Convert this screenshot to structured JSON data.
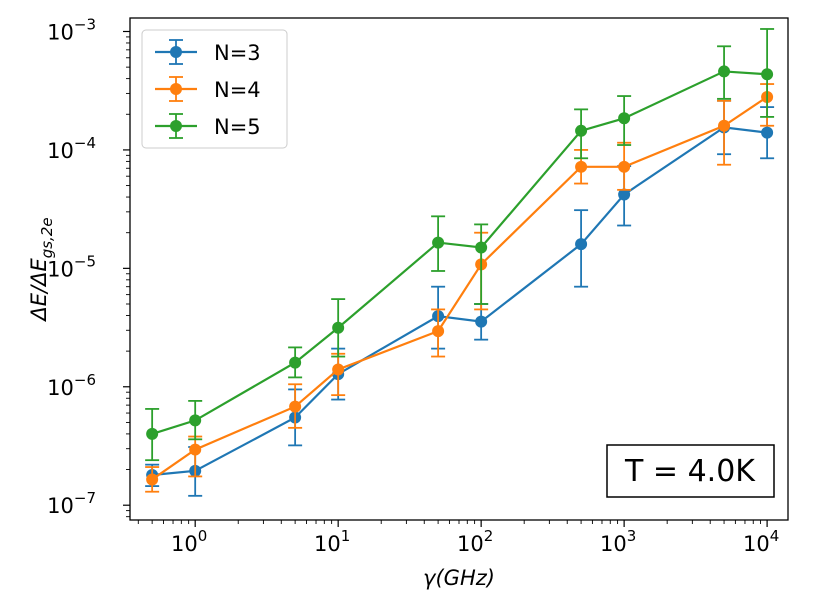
{
  "chart_data": {
    "type": "line",
    "title": "",
    "xlabel": "γ(GHz)",
    "ylabel": "ΔE/ΔE_gs,2e",
    "xscale": "log",
    "yscale": "log",
    "xlim": [
      0.35,
      14000
    ],
    "ylim": [
      7.5e-08,
      0.0013
    ],
    "grid": false,
    "legend_position": "top-left",
    "x_ticks": [
      {
        "value": 1,
        "mantissa": "10",
        "exp": "0"
      },
      {
        "value": 10,
        "mantissa": "10",
        "exp": "1"
      },
      {
        "value": 100,
        "mantissa": "10",
        "exp": "2"
      },
      {
        "value": 1000,
        "mantissa": "10",
        "exp": "3"
      },
      {
        "value": 10000,
        "mantissa": "10",
        "exp": "4"
      }
    ],
    "y_ticks": [
      {
        "value": 1e-07,
        "mantissa": "10",
        "exp": "−7"
      },
      {
        "value": 1e-06,
        "mantissa": "10",
        "exp": "−6"
      },
      {
        "value": 1e-05,
        "mantissa": "10",
        "exp": "−5"
      },
      {
        "value": 0.0001,
        "mantissa": "10",
        "exp": "−4"
      },
      {
        "value": 0.001,
        "mantissa": "10",
        "exp": "−3"
      }
    ],
    "x": [
      0.5,
      1,
      5,
      10,
      50,
      100,
      500,
      1000,
      5000,
      10000
    ],
    "series": [
      {
        "name": "N=3",
        "color": "#1f77b4",
        "values": [
          1.8e-07,
          1.95e-07,
          5.5e-07,
          1.28e-06,
          3.95e-06,
          3.55e-06,
          1.6e-05,
          4.2e-05,
          0.000155,
          0.00014
        ],
        "err_low": [
          1.45e-07,
          1.2e-07,
          3.2e-07,
          7.8e-07,
          2.1e-06,
          2.5e-06,
          7e-06,
          2.3e-05,
          9.2e-05,
          8.5e-05
        ],
        "err_high": [
          2.2e-07,
          3.1e-07,
          9.5e-07,
          2.1e-06,
          7e-06,
          5e-06,
          3.1e-05,
          7.3e-05,
          0.00026,
          0.00023
        ]
      },
      {
        "name": "N=4",
        "color": "#ff7f0e",
        "values": [
          1.65e-07,
          2.95e-07,
          6.8e-07,
          1.4e-06,
          2.95e-06,
          1.08e-05,
          7.2e-05,
          7.2e-05,
          0.00016,
          0.00028
        ],
        "err_low": [
          1.3e-07,
          1.75e-07,
          4.5e-07,
          8.5e-07,
          1.8e-06,
          4.5e-06,
          5.2e-05,
          4.6e-05,
          7.5e-05,
          0.00016
        ],
        "err_high": [
          2.1e-07,
          3.8e-07,
          1.05e-06,
          1.9e-06,
          4.5e-06,
          2e-05,
          0.0001,
          0.000115,
          0.00026,
          0.00036
        ]
      },
      {
        "name": "N=5",
        "color": "#2ca02c",
        "values": [
          4e-07,
          5.2e-07,
          1.6e-06,
          3.15e-06,
          1.65e-05,
          1.5e-05,
          0.000145,
          0.000185,
          0.00046,
          0.000435
        ],
        "err_low": [
          2.4e-07,
          3.6e-07,
          1.2e-06,
          1.8e-06,
          9.5e-06,
          5e-06,
          8.5e-05,
          0.00011,
          0.00027,
          0.00019
        ],
        "err_high": [
          6.5e-07,
          7.6e-07,
          2.15e-06,
          5.5e-06,
          2.75e-05,
          2.35e-05,
          0.00022,
          0.000285,
          0.00075,
          0.00105
        ]
      }
    ],
    "annotation": "T = 4.0K"
  }
}
